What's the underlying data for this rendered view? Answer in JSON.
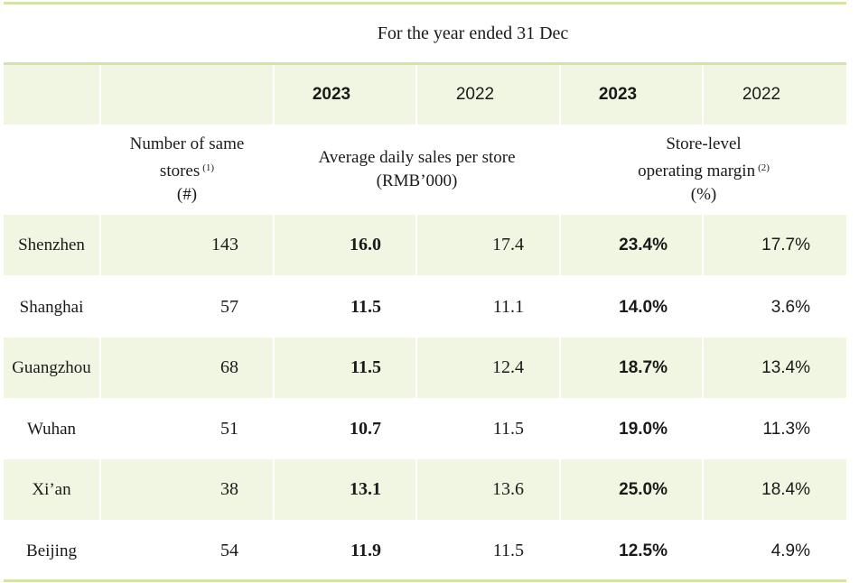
{
  "header": {
    "period": "For the year ended 31 Dec",
    "years": [
      "2023",
      "2022",
      "2023",
      "2022"
    ],
    "stores_label_line1": "Number of same",
    "stores_label_line2": "stores",
    "stores_note": "(1)",
    "stores_unit": "(#)",
    "sales_label": "Average daily sales per store",
    "sales_unit": "(RMB’000)",
    "margin_label_line1": "Store-level",
    "margin_label_line2": "operating margin",
    "margin_note": "(2)",
    "margin_unit": "(%)"
  },
  "rows": [
    {
      "city": "Shenzhen",
      "stores": "143",
      "sales_2023": "16.0",
      "sales_2022": "17.4",
      "margin_2023": "23.4%",
      "margin_2022": "17.7%"
    },
    {
      "city": "Shanghai",
      "stores": "57",
      "sales_2023": "11.5",
      "sales_2022": "11.1",
      "margin_2023": "14.0%",
      "margin_2022": "3.6%"
    },
    {
      "city": "Guangzhou",
      "stores": "68",
      "sales_2023": "11.5",
      "sales_2022": "12.4",
      "margin_2023": "18.7%",
      "margin_2022": "13.4%"
    },
    {
      "city": "Wuhan",
      "stores": "51",
      "sales_2023": "10.7",
      "sales_2022": "11.5",
      "margin_2023": "19.0%",
      "margin_2022": "11.3%"
    },
    {
      "city": "Xi’an",
      "stores": "38",
      "sales_2023": "13.1",
      "sales_2022": "13.6",
      "margin_2023": "25.0%",
      "margin_2022": "18.4%"
    },
    {
      "city": "Beijing",
      "stores": "54",
      "sales_2023": "11.9",
      "sales_2022": "11.5",
      "margin_2023": "12.5%",
      "margin_2022": "4.9%"
    }
  ],
  "colors": {
    "band": "#f1f6e2",
    "rule": "#d3e3a7",
    "text": "#1a1a1a"
  }
}
